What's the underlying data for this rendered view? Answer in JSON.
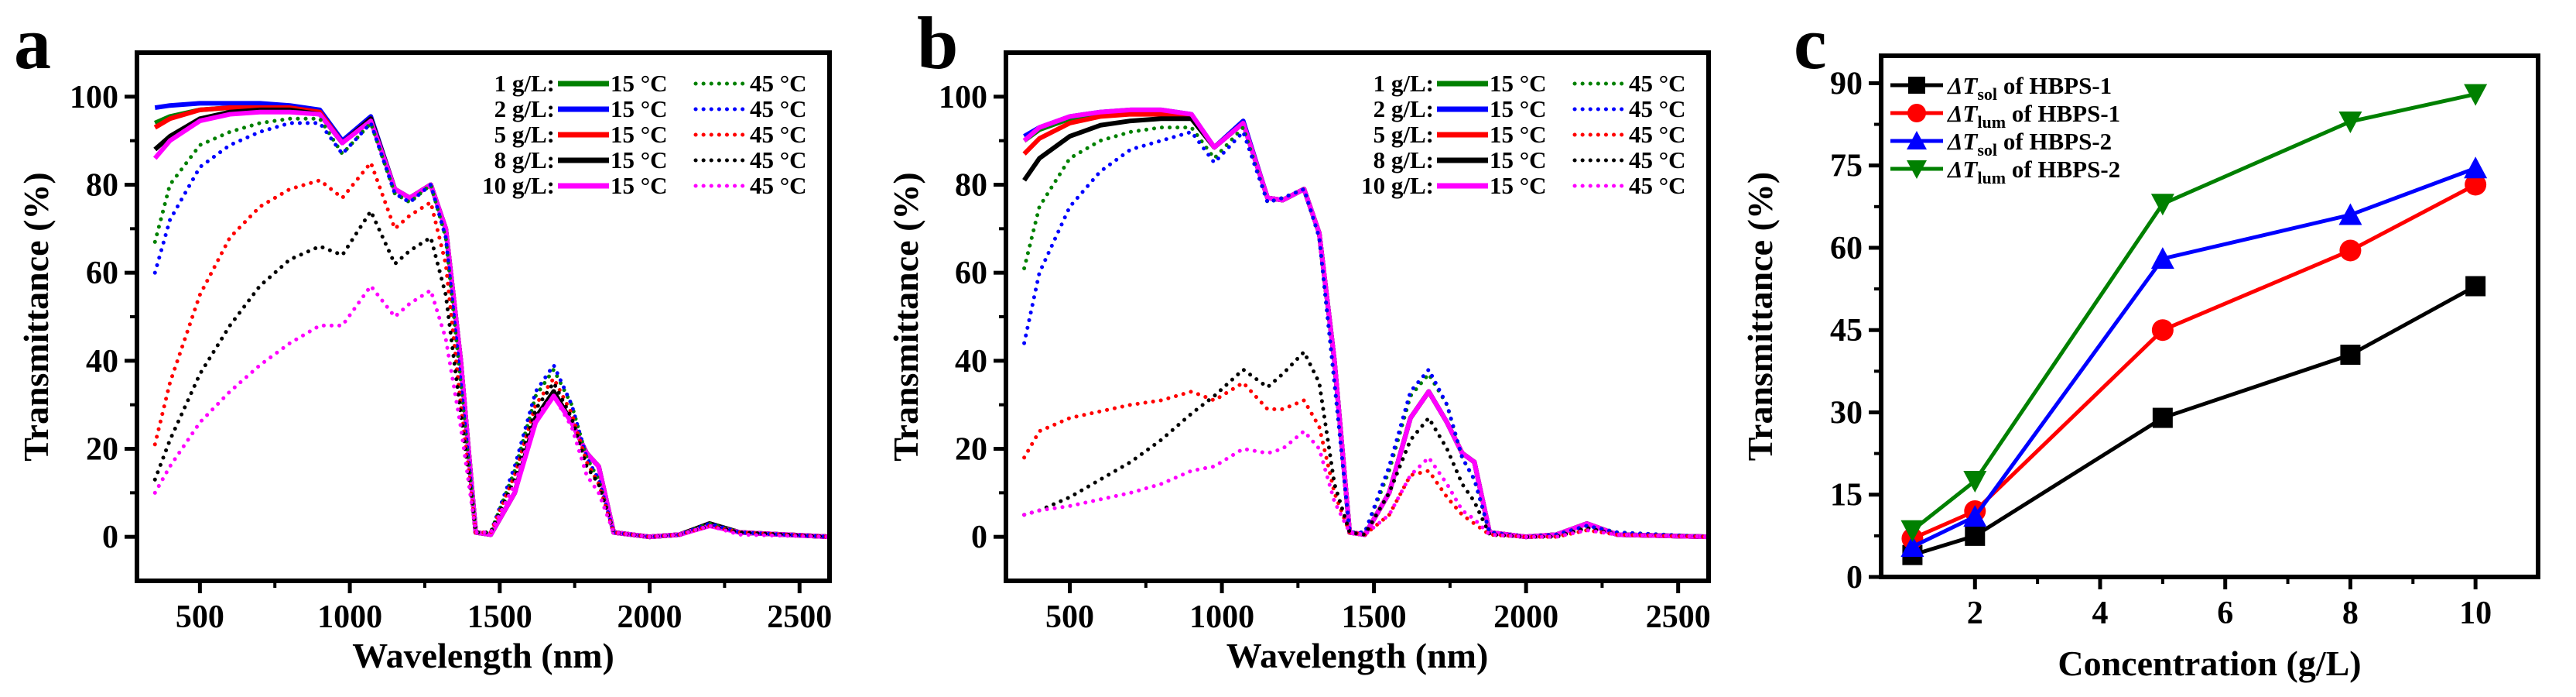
{
  "chart_data": [
    {
      "panel_label": "a",
      "type": "line",
      "xlabel": "Wavelength (nm)",
      "ylabel": "Transmittance (%)",
      "xlim": [
        290,
        2600
      ],
      "ylim": [
        -10,
        110
      ],
      "xticks": [
        500,
        1000,
        1500,
        2000,
        2500
      ],
      "yticks": [
        0,
        20,
        40,
        60,
        80,
        100
      ],
      "legend": {
        "placement": "top-right",
        "solid_label": "15 °C",
        "dotted_label": "45 °C",
        "rows": [
          {
            "label": "1 g/L:",
            "color": "#008000"
          },
          {
            "label": "2 g/L:",
            "color": "#0000ff"
          },
          {
            "label": "5 g/L:",
            "color": "#ff0000"
          },
          {
            "label": "8 g/L:",
            "color": "#000000"
          },
          {
            "label": "10 g/L:",
            "color": "#ff00ff"
          }
        ]
      },
      "x": [
        350,
        400,
        500,
        600,
        700,
        800,
        900,
        975,
        1070,
        1150,
        1200,
        1270,
        1320,
        1370,
        1420,
        1470,
        1550,
        1620,
        1680,
        1740,
        1790,
        1830,
        1880,
        2000,
        2100,
        2200,
        2300,
        2600
      ],
      "series": [
        {
          "name": "1 g/L 15 °C",
          "row": 0,
          "style": "solid",
          "y": [
            94,
            95.5,
            97,
            97.5,
            97.5,
            97.5,
            96,
            89.5,
            95,
            79,
            77,
            80,
            70,
            40,
            1,
            0.5,
            10,
            27,
            33,
            26,
            19,
            16,
            1,
            0,
            0.5,
            3,
            1,
            0
          ]
        },
        {
          "name": "2 g/L 15 °C",
          "row": 1,
          "style": "solid",
          "y": [
            97.5,
            98,
            98.5,
            98.5,
            98.5,
            98,
            97,
            90,
            95.5,
            79,
            77,
            80,
            70,
            40,
            1,
            0.5,
            10,
            27,
            33,
            26,
            19,
            16,
            1,
            0,
            0.5,
            3,
            1,
            0
          ]
        },
        {
          "name": "5 g/L 15 °C",
          "row": 2,
          "style": "solid",
          "y": [
            93,
            95,
            97,
            97.5,
            97.5,
            97.5,
            96.5,
            89.5,
            95,
            79,
            77,
            80,
            70,
            40,
            1,
            0.5,
            10,
            27,
            33,
            26,
            19,
            16,
            1,
            0,
            0.5,
            3,
            1,
            0
          ]
        },
        {
          "name": "8 g/L 15 °C",
          "row": 3,
          "style": "solid",
          "y": [
            88,
            91,
            95,
            96.5,
            97,
            97,
            96,
            89.5,
            95,
            79,
            77,
            80,
            70,
            40,
            1,
            0.5,
            10,
            27,
            33,
            26,
            19,
            16,
            1,
            0,
            0.5,
            3,
            1,
            0
          ]
        },
        {
          "name": "10 g/L 15 °C",
          "row": 4,
          "style": "solid",
          "y": [
            86,
            90,
            94.5,
            96,
            96.5,
            96.5,
            96,
            89.5,
            94.5,
            79,
            77,
            80,
            70,
            40,
            1,
            0.5,
            10,
            26,
            32,
            26,
            19,
            16,
            1,
            0,
            0.5,
            2.5,
            1,
            0
          ]
        },
        {
          "name": "1 g/L 45 °C",
          "row": 0,
          "style": "dotted",
          "y": [
            67,
            80,
            89,
            92,
            94,
            95,
            95,
            87,
            94,
            78,
            76,
            80,
            68,
            35,
            1,
            1,
            15,
            32,
            38,
            30,
            18,
            13,
            1,
            0,
            0.5,
            3,
            1,
            0
          ]
        },
        {
          "name": "2 g/L 45 °C",
          "row": 1,
          "style": "dotted",
          "y": [
            60,
            72,
            84,
            89,
            92,
            94,
            94,
            87,
            94,
            78,
            76,
            80,
            68,
            35,
            1,
            1,
            16,
            33,
            39,
            30,
            18,
            13,
            1,
            0,
            0.5,
            3,
            1,
            0
          ]
        },
        {
          "name": "5 g/L 45 °C",
          "row": 2,
          "style": "dotted",
          "y": [
            21,
            35,
            55,
            68,
            75,
            79,
            81,
            77,
            85,
            70,
            73,
            76,
            62,
            30,
            1,
            1,
            14,
            30,
            36,
            28,
            17,
            12,
            1,
            0,
            0.5,
            2.5,
            1,
            0
          ]
        },
        {
          "name": "8 g/L 45 °C",
          "row": 3,
          "style": "dotted",
          "y": [
            13,
            22,
            37,
            48,
            57,
            63,
            66,
            64,
            74,
            62,
            65,
            68,
            55,
            28,
            1,
            1,
            13,
            29,
            35,
            27,
            16,
            12,
            1,
            0,
            0.5,
            2.5,
            1,
            0
          ]
        },
        {
          "name": "10 g/L 45 °C",
          "row": 4,
          "style": "dotted",
          "y": [
            10,
            16,
            26,
            33,
            39,
            44,
            48,
            48,
            57,
            50,
            53,
            56,
            45,
            25,
            1,
            1,
            12,
            27,
            32,
            25,
            14,
            10,
            1,
            0,
            0.5,
            2.5,
            0.5,
            0
          ]
        }
      ]
    },
    {
      "panel_label": "b",
      "type": "line",
      "xlabel": "Wavelength (nm)",
      "ylabel": "Transmittance (%)",
      "xlim": [
        290,
        2600
      ],
      "ylim": [
        -10,
        110
      ],
      "xticks": [
        500,
        1000,
        1500,
        2000,
        2500
      ],
      "yticks": [
        0,
        20,
        40,
        60,
        80,
        100
      ],
      "legend": {
        "placement": "top-right",
        "solid_label": "15 °C",
        "dotted_label": "45 °C",
        "rows": [
          {
            "label": "1 g/L:",
            "color": "#008000"
          },
          {
            "label": "2 g/L:",
            "color": "#0000ff"
          },
          {
            "label": "5 g/L:",
            "color": "#ff0000"
          },
          {
            "label": "8 g/L:",
            "color": "#000000"
          },
          {
            "label": "10 g/L:",
            "color": "#ff00ff"
          }
        ]
      },
      "x": [
        350,
        400,
        500,
        600,
        700,
        800,
        900,
        975,
        1070,
        1150,
        1200,
        1270,
        1320,
        1370,
        1420,
        1470,
        1550,
        1620,
        1680,
        1740,
        1790,
        1830,
        1880,
        2000,
        2100,
        2200,
        2300,
        2600
      ],
      "series": [
        {
          "name": "1 g/L 15 °C",
          "row": 0,
          "style": "solid",
          "y": [
            90,
            92.5,
            95,
            96,
            96.5,
            96.5,
            95.5,
            88.5,
            94,
            77,
            76.5,
            79,
            69,
            40,
            1,
            0.5,
            10,
            27,
            33,
            26,
            19,
            17,
            1,
            0,
            0.5,
            3,
            0.5,
            0
          ]
        },
        {
          "name": "2 g/L 15 °C",
          "row": 1,
          "style": "solid",
          "y": [
            91,
            93,
            95.5,
            96.5,
            97,
            97,
            96,
            88.5,
            94.5,
            77,
            76.5,
            79,
            69,
            40,
            1,
            0.5,
            10,
            27,
            33,
            26,
            19,
            17,
            1,
            0,
            0.5,
            3,
            0.5,
            0
          ]
        },
        {
          "name": "5 g/L 15 °C",
          "row": 2,
          "style": "solid",
          "y": [
            87,
            90.5,
            94,
            95.5,
            96,
            96,
            95.5,
            88.5,
            94,
            77,
            76.5,
            79,
            69,
            40,
            1,
            0.5,
            10,
            27,
            33,
            26,
            19,
            17,
            1,
            0,
            0.5,
            3,
            0.5,
            0
          ]
        },
        {
          "name": "8 g/L 15 °C",
          "row": 3,
          "style": "solid",
          "y": [
            81,
            86,
            91,
            93.5,
            94.5,
            95,
            95,
            88.5,
            94,
            77,
            76.5,
            79,
            69,
            40,
            1,
            0.5,
            10,
            27,
            33,
            26,
            19,
            17,
            1,
            0,
            0.5,
            3,
            0.5,
            0
          ]
        },
        {
          "name": "10 g/L 15 °C",
          "row": 4,
          "style": "solid",
          "y": [
            90,
            93,
            95.5,
            96.5,
            97,
            97,
            96,
            88.5,
            94,
            77,
            76.5,
            79,
            69,
            40,
            1,
            0.5,
            10,
            27,
            33,
            26,
            19,
            17,
            1,
            0,
            0.5,
            3,
            0.5,
            0
          ]
        },
        {
          "name": "1 g/L 45 °C",
          "row": 0,
          "style": "dotted",
          "y": [
            61,
            75,
            86,
            90,
            92,
            93,
            93,
            86,
            93,
            76,
            77,
            79,
            68,
            35,
            1,
            1,
            15,
            32,
            37,
            30,
            18,
            13,
            1,
            0,
            0.5,
            2.5,
            1,
            0
          ]
        },
        {
          "name": "2 g/L 45 °C",
          "row": 1,
          "style": "dotted",
          "y": [
            44,
            60,
            75,
            83,
            88,
            90,
            92,
            85,
            92,
            76,
            77,
            79,
            68,
            35,
            1,
            1,
            16,
            33,
            38,
            30,
            18,
            13,
            1,
            0,
            0.5,
            2.5,
            1,
            0
          ]
        },
        {
          "name": "5 g/L 45 °C",
          "row": 2,
          "style": "dotted",
          "y": [
            18,
            24,
            27,
            28.5,
            30,
            31,
            33,
            31,
            35,
            29,
            29,
            31,
            25,
            10,
            1,
            0.5,
            5,
            14,
            15,
            9,
            5,
            3,
            0.5,
            0,
            0,
            1.5,
            0.5,
            0
          ]
        },
        {
          "name": "8 g/L 45 °C",
          "row": 3,
          "style": "dotted",
          "y": [
            5,
            6,
            9,
            13,
            17,
            22,
            28,
            32,
            38,
            34,
            37,
            42,
            35,
            12,
            1,
            0.5,
            10,
            22,
            27,
            20,
            12,
            8,
            0.5,
            0,
            0,
            2,
            0.5,
            0
          ]
        },
        {
          "name": "10 g/L 45 °C",
          "row": 4,
          "style": "dotted",
          "y": [
            5,
            6,
            7,
            8.5,
            10,
            12,
            15,
            16,
            20,
            19,
            20,
            24,
            20,
            8,
            1,
            0.5,
            5,
            14,
            18,
            12,
            6,
            4,
            0.5,
            0,
            0,
            1.5,
            0.5,
            0
          ]
        }
      ]
    },
    {
      "panel_label": "c",
      "type": "line",
      "xlabel": "Concentration (g/L)",
      "ylabel": "Transmittance (%)",
      "xlim": [
        0.5,
        11
      ],
      "ylim": [
        0,
        95
      ],
      "xticks": [
        2,
        4,
        6,
        8,
        10
      ],
      "yticks": [
        0,
        15,
        30,
        45,
        60,
        75,
        90
      ],
      "legend": {
        "placement": "top-left"
      },
      "x": [
        1,
        2,
        5,
        8,
        10
      ],
      "series": [
        {
          "name": "ΔTsol of HBPS-1",
          "prefix": "ΔT",
          "sub": "sol",
          "suffix": " of HBPS-1",
          "marker": "square",
          "color": "#000000",
          "y": [
            4,
            7.5,
            29,
            40.5,
            53
          ]
        },
        {
          "name": "ΔTlum of HBPS-1",
          "prefix": "ΔT",
          "sub": "lum",
          "suffix": " of HBPS-1",
          "marker": "circle",
          "color": "#ff0000",
          "y": [
            7,
            12,
            45,
            59.5,
            71.5
          ]
        },
        {
          "name": "ΔTsol of HBPS-2",
          "prefix": "ΔT",
          "sub": "sol",
          "suffix": " of HBPS-2",
          "marker": "triangle-up",
          "color": "#0000ff",
          "y": [
            5.5,
            11,
            58,
            66,
            74.5
          ]
        },
        {
          "name": "ΔTlum of HBPS-2",
          "prefix": "ΔT",
          "sub": "lum",
          "suffix": " of HBPS-2",
          "marker": "triangle-down",
          "color": "#008000",
          "y": [
            8.5,
            17.5,
            68,
            83,
            88
          ]
        }
      ]
    }
  ]
}
